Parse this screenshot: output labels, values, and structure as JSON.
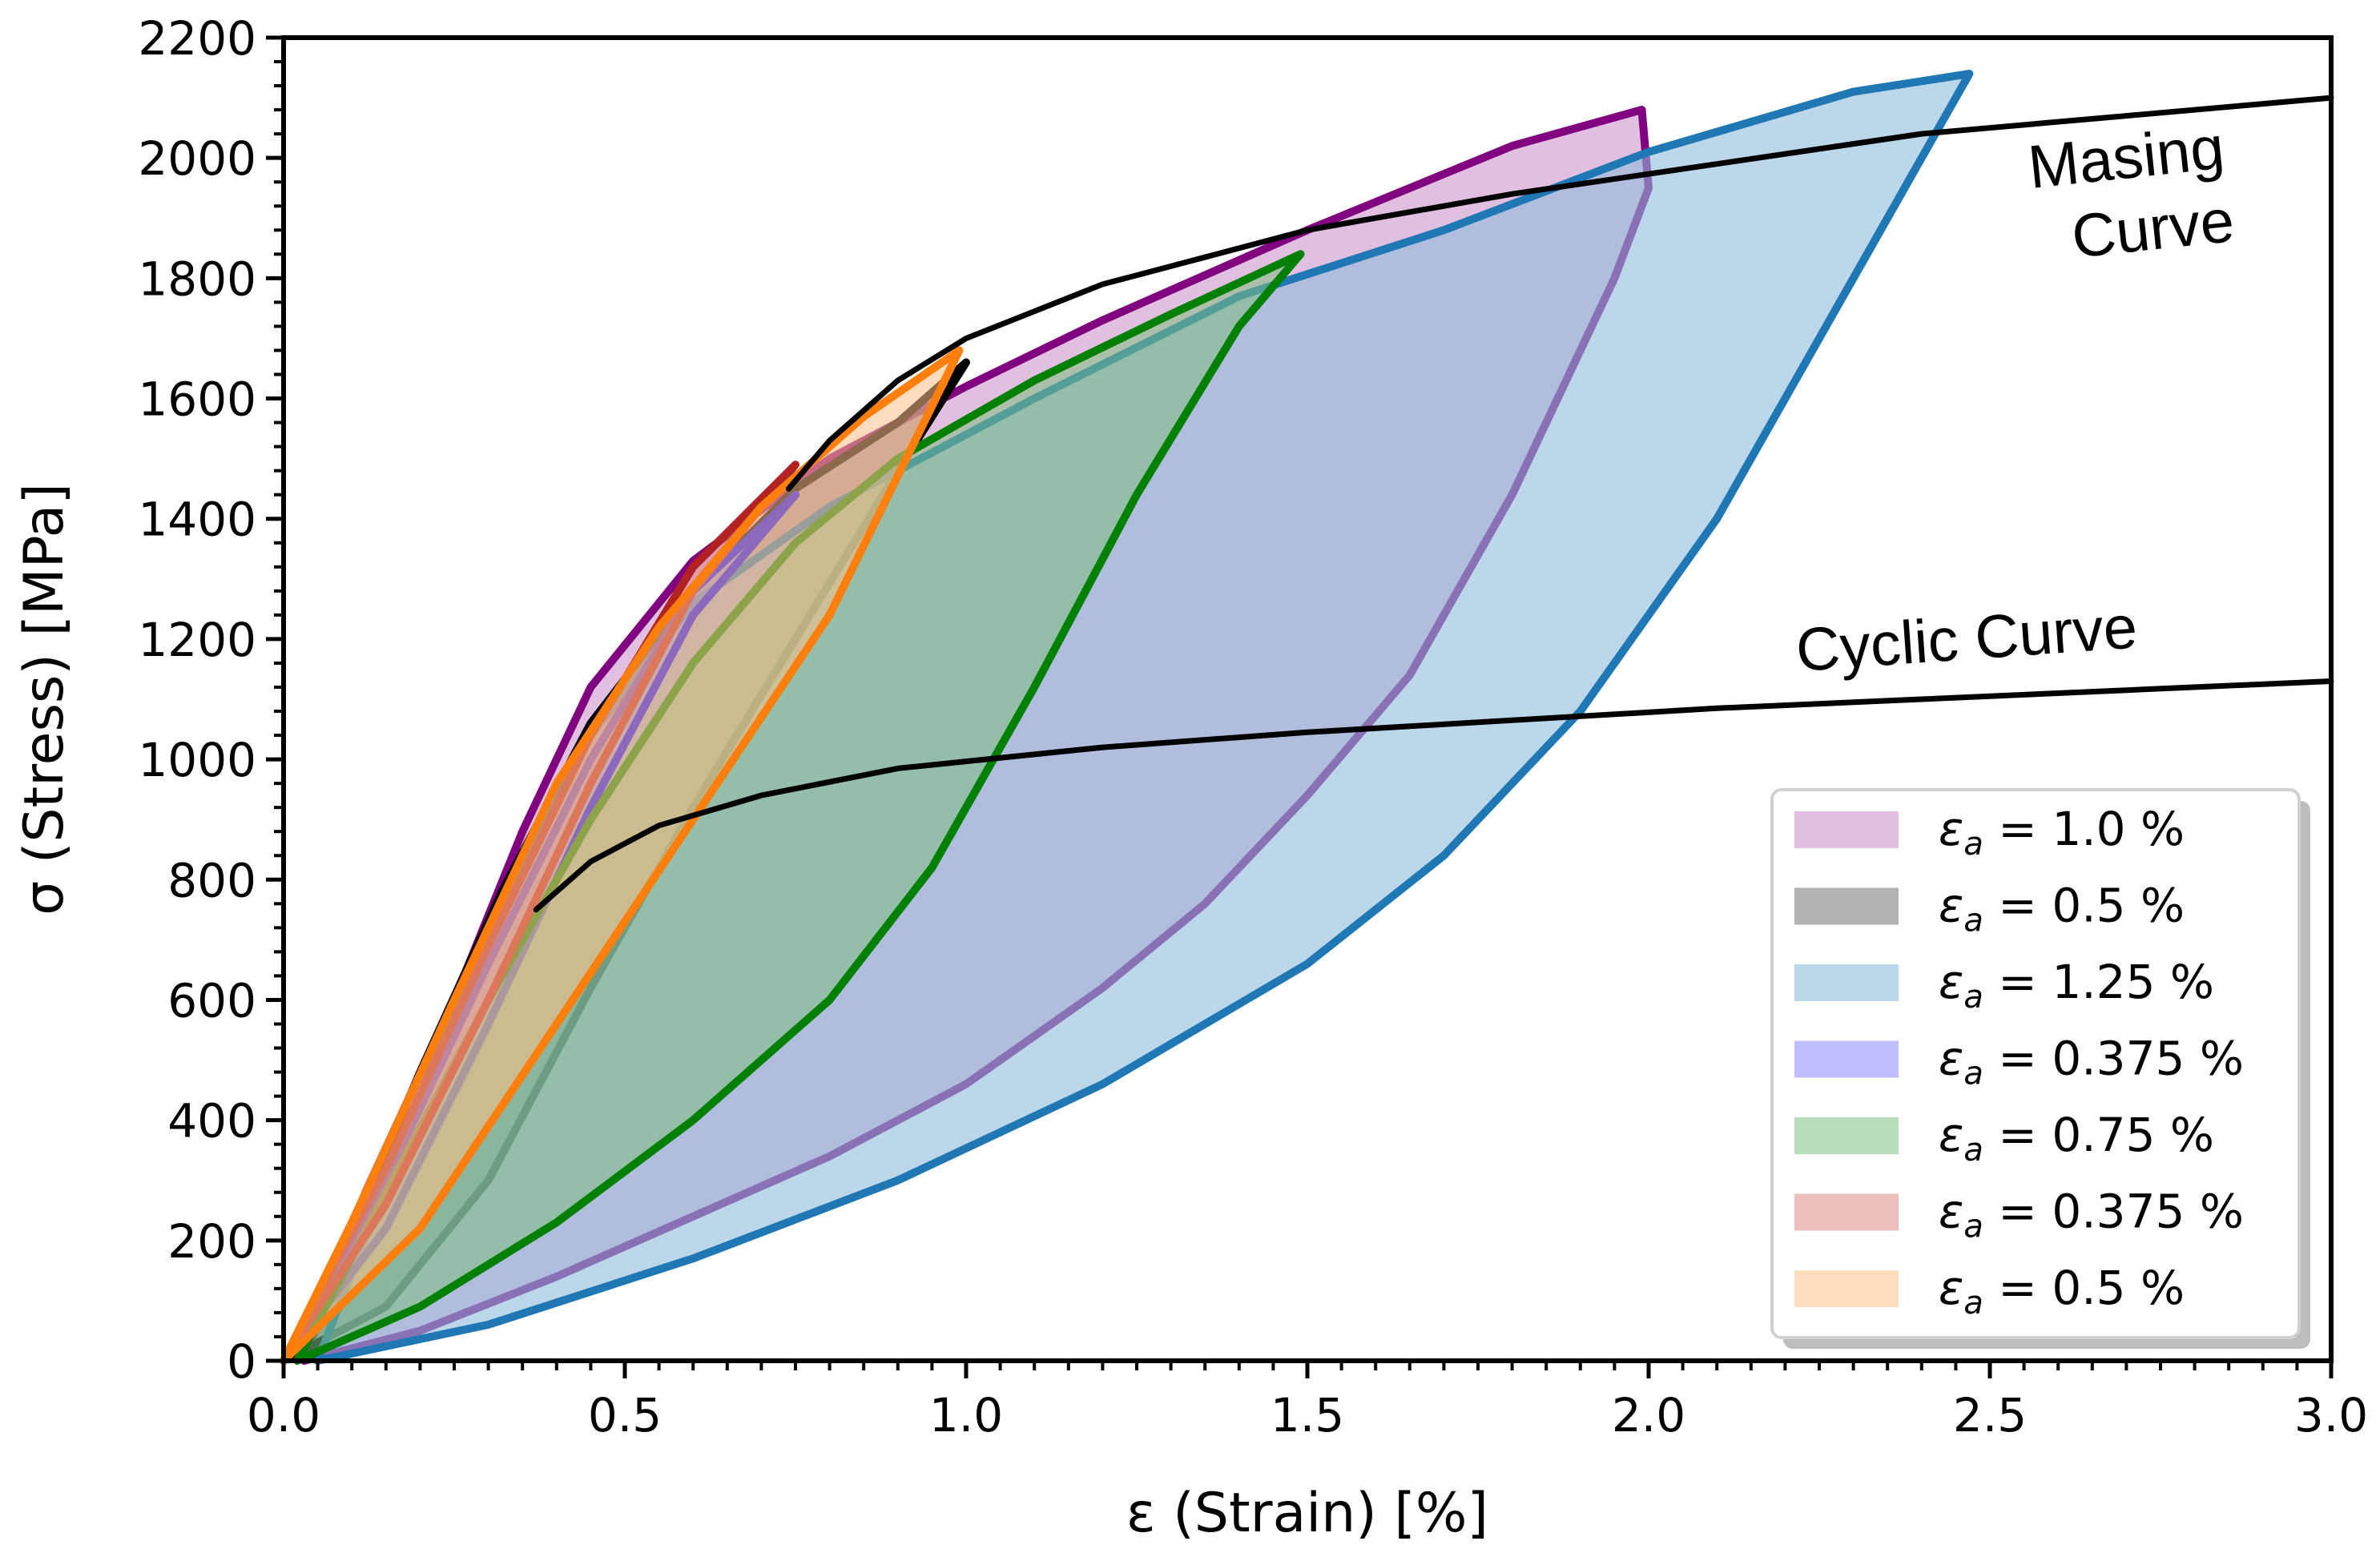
{
  "chart_data": {
    "type": "line",
    "title": "",
    "xlabel": "ε (Strain) [%]",
    "ylabel": "σ (Stress) [MPa]",
    "xlim": [
      0,
      3.0
    ],
    "ylim": [
      0,
      2200
    ],
    "xticks": [
      "0.0",
      "0.5",
      "1.0",
      "1.5",
      "2.0",
      "2.5",
      "3.0"
    ],
    "xtick_values": [
      0,
      0.5,
      1.0,
      1.5,
      2.0,
      2.5,
      3.0
    ],
    "yticks": [
      "0",
      "200",
      "400",
      "600",
      "800",
      "1000",
      "1200",
      "1400",
      "1600",
      "1800",
      "2000",
      "2200"
    ],
    "ytick_values": [
      0,
      200,
      400,
      600,
      800,
      1000,
      1200,
      1400,
      1600,
      1800,
      2000,
      2200
    ],
    "legend_position": "lower-right",
    "loops": [
      {
        "name": "εa = 1.0 %",
        "label_sym": "ε",
        "label_sub": "a",
        "label_rest": " = 1.0 %",
        "amplitude": 1.0,
        "edge": "#800080",
        "fill": "#c47fc4",
        "fill_opacity": 0.5,
        "up": [
          [
            0.03,
            0
          ],
          [
            0.2,
            50
          ],
          [
            0.4,
            140
          ],
          [
            0.6,
            240
          ],
          [
            0.8,
            340
          ],
          [
            1.0,
            460
          ],
          [
            1.2,
            620
          ],
          [
            1.35,
            760
          ],
          [
            1.5,
            940
          ],
          [
            1.65,
            1140
          ],
          [
            1.8,
            1440
          ],
          [
            1.95,
            1800
          ],
          [
            2.0,
            1950
          ],
          [
            1.99,
            2080
          ]
        ],
        "down": [
          [
            1.99,
            2080
          ],
          [
            1.8,
            2020
          ],
          [
            1.5,
            1880
          ],
          [
            1.2,
            1730
          ],
          [
            1.0,
            1620
          ],
          [
            0.8,
            1500
          ],
          [
            0.6,
            1330
          ],
          [
            0.45,
            1120
          ],
          [
            0.35,
            880
          ],
          [
            0.25,
            600
          ],
          [
            0.12,
            280
          ],
          [
            0.03,
            0
          ]
        ]
      },
      {
        "name": "εa = 0.5 %",
        "label_sym": "ε",
        "label_sub": "a",
        "label_rest": " = 0.5 %",
        "amplitude": 0.5,
        "edge": "#000000",
        "fill": "#666666",
        "fill_opacity": 0.5,
        "up": [
          [
            0.0,
            0
          ],
          [
            0.15,
            90
          ],
          [
            0.3,
            300
          ],
          [
            0.45,
            620
          ],
          [
            0.6,
            920
          ],
          [
            0.75,
            1200
          ],
          [
            0.9,
            1480
          ],
          [
            1.0,
            1660
          ]
        ],
        "down": [
          [
            1.0,
            1660
          ],
          [
            0.9,
            1560
          ],
          [
            0.75,
            1450
          ],
          [
            0.6,
            1280
          ],
          [
            0.45,
            1060
          ],
          [
            0.32,
            780
          ],
          [
            0.2,
            480
          ],
          [
            0.08,
            160
          ],
          [
            0.0,
            0
          ]
        ]
      },
      {
        "name": "εa = 1.25 %",
        "label_sym": "ε",
        "label_sub": "a",
        "label_rest": " = 1.25 %",
        "amplitude": 1.25,
        "edge": "#1f77b4",
        "fill": "#8fbcdb",
        "fill_opacity": 0.6,
        "up": [
          [
            0.05,
            0
          ],
          [
            0.3,
            60
          ],
          [
            0.6,
            170
          ],
          [
            0.9,
            300
          ],
          [
            1.2,
            460
          ],
          [
            1.5,
            660
          ],
          [
            1.7,
            840
          ],
          [
            1.9,
            1080
          ],
          [
            2.1,
            1400
          ],
          [
            2.3,
            1800
          ],
          [
            2.47,
            2140
          ]
        ],
        "down": [
          [
            2.47,
            2140
          ],
          [
            2.3,
            2110
          ],
          [
            2.0,
            2010
          ],
          [
            1.7,
            1880
          ],
          [
            1.4,
            1770
          ],
          [
            1.1,
            1600
          ],
          [
            0.8,
            1420
          ],
          [
            0.6,
            1260
          ],
          [
            0.45,
            1040
          ],
          [
            0.35,
            820
          ],
          [
            0.22,
            500
          ],
          [
            0.05,
            0
          ]
        ]
      },
      {
        "name": "εa = 0.375 %",
        "label_sym": "ε",
        "label_sub": "a",
        "label_rest": " = 0.375 %",
        "amplitude": 0.375,
        "edge": "#0000ff",
        "fill": "#7f7fff",
        "fill_opacity": 0.5,
        "up": [
          [
            0.0,
            0
          ],
          [
            0.15,
            300
          ],
          [
            0.3,
            660
          ],
          [
            0.45,
            1000
          ],
          [
            0.6,
            1280
          ],
          [
            0.75,
            1440
          ]
        ],
        "down": [
          [
            0.75,
            1440
          ],
          [
            0.6,
            1240
          ],
          [
            0.45,
            920
          ],
          [
            0.3,
            560
          ],
          [
            0.15,
            220
          ],
          [
            0.0,
            0
          ]
        ]
      },
      {
        "name": "εa = 0.75 %",
        "label_sym": "ε",
        "label_sub": "a",
        "label_rest": " = 0.75 %",
        "amplitude": 0.75,
        "edge": "#008000",
        "fill": "#7fbf7f",
        "fill_opacity": 0.55,
        "up": [
          [
            0.02,
            0
          ],
          [
            0.2,
            90
          ],
          [
            0.4,
            230
          ],
          [
            0.6,
            400
          ],
          [
            0.8,
            600
          ],
          [
            0.95,
            820
          ],
          [
            1.1,
            1120
          ],
          [
            1.25,
            1440
          ],
          [
            1.4,
            1720
          ],
          [
            1.49,
            1840
          ]
        ],
        "down": [
          [
            1.49,
            1840
          ],
          [
            1.3,
            1740
          ],
          [
            1.1,
            1630
          ],
          [
            0.9,
            1500
          ],
          [
            0.75,
            1360
          ],
          [
            0.6,
            1160
          ],
          [
            0.45,
            900
          ],
          [
            0.3,
            600
          ],
          [
            0.15,
            280
          ],
          [
            0.02,
            0
          ]
        ]
      },
      {
        "name": "εa = 0.375 %",
        "label_sym": "ε",
        "label_sub": "a",
        "label_rest": " = 0.375 %",
        "amplitude": 0.375,
        "edge": "#b22222",
        "fill": "#d97f7f",
        "fill_opacity": 0.5,
        "up": [
          [
            0.0,
            0
          ],
          [
            0.15,
            320
          ],
          [
            0.3,
            690
          ],
          [
            0.45,
            1040
          ],
          [
            0.6,
            1320
          ],
          [
            0.75,
            1490
          ]
        ],
        "down": [
          [
            0.75,
            1490
          ],
          [
            0.6,
            1280
          ],
          [
            0.45,
            960
          ],
          [
            0.3,
            600
          ],
          [
            0.15,
            260
          ],
          [
            0.0,
            0
          ]
        ]
      },
      {
        "name": "εa = 0.5 %",
        "label_sym": "ε",
        "label_sub": "a",
        "label_rest": " = 0.5 %",
        "amplitude": 0.5,
        "edge": "#ff7f0e",
        "fill": "#ffbf86",
        "fill_opacity": 0.55,
        "up": [
          [
            0.0,
            0
          ],
          [
            0.2,
            220
          ],
          [
            0.4,
            560
          ],
          [
            0.6,
            900
          ],
          [
            0.8,
            1240
          ],
          [
            0.99,
            1680
          ]
        ],
        "down": [
          [
            0.99,
            1680
          ],
          [
            0.85,
            1570
          ],
          [
            0.7,
            1420
          ],
          [
            0.55,
            1220
          ],
          [
            0.4,
            960
          ],
          [
            0.25,
            600
          ],
          [
            0.1,
            230
          ],
          [
            0.0,
            0
          ]
        ]
      }
    ],
    "curves": [
      {
        "name": "Masing Curve",
        "label_line1": "Masing",
        "label_line2": "Curve",
        "color": "#000000",
        "points": [
          [
            0.74,
            1450
          ],
          [
            0.8,
            1530
          ],
          [
            0.9,
            1630
          ],
          [
            1.0,
            1700
          ],
          [
            1.2,
            1790
          ],
          [
            1.5,
            1880
          ],
          [
            1.8,
            1940
          ],
          [
            2.1,
            1990
          ],
          [
            2.4,
            2040
          ],
          [
            2.7,
            2070
          ],
          [
            3.0,
            2100
          ]
        ]
      },
      {
        "name": "Cyclic Curve",
        "color": "#000000",
        "points": [
          [
            0.37,
            750
          ],
          [
            0.45,
            830
          ],
          [
            0.55,
            890
          ],
          [
            0.7,
            940
          ],
          [
            0.9,
            985
          ],
          [
            1.2,
            1020
          ],
          [
            1.5,
            1045
          ],
          [
            1.8,
            1065
          ],
          [
            2.1,
            1085
          ],
          [
            2.4,
            1100
          ],
          [
            2.7,
            1115
          ],
          [
            3.0,
            1130
          ]
        ]
      }
    ]
  }
}
